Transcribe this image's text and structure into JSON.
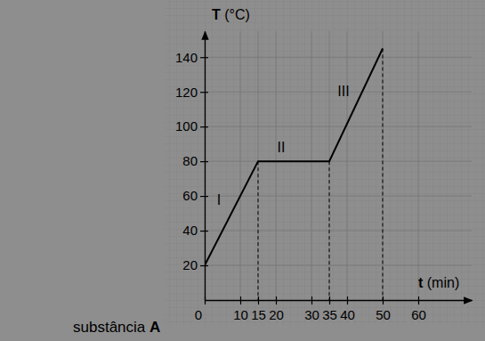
{
  "chart_data": {
    "type": "line",
    "x_label": "t (min)",
    "y_label": "T (°C)",
    "caption": "substância A",
    "annotations": [
      "I",
      "II",
      "III"
    ],
    "x": [
      0,
      15,
      35,
      50
    ],
    "values": [
      20,
      80,
      80,
      145
    ],
    "color": "#000000",
    "xlim": [
      0,
      75
    ],
    "xticks": [
      0,
      10,
      15,
      20,
      30,
      35,
      40,
      50,
      60
    ],
    "ylim": [
      0,
      155
    ],
    "yticks": [
      20,
      40,
      60,
      80,
      100,
      120,
      140
    ],
    "grid": true
  }
}
